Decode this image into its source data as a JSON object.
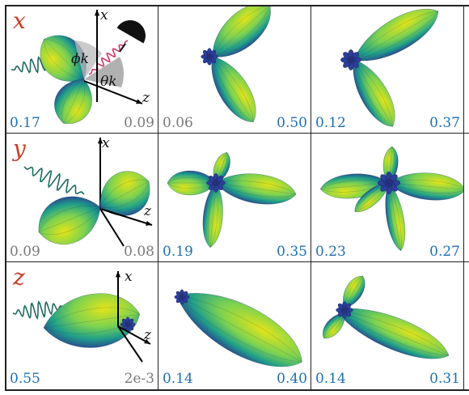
{
  "rows": [
    {
      "axis": "x",
      "cells": [
        {
          "left_value": "0.17",
          "left_color": "#1f6fb5",
          "right_value": "0.09",
          "right_color": "#7a7a7a",
          "kind": "schematic-x"
        },
        {
          "left_value": "0.06",
          "left_color": "#7a7a7a",
          "right_value": "0.50",
          "right_color": "#1f6fb5",
          "kind": "pattern"
        },
        {
          "left_value": "0.12",
          "left_color": "#1f6fb5",
          "right_value": "0.37",
          "right_color": "#1f6fb5",
          "kind": "pattern"
        }
      ]
    },
    {
      "axis": "y",
      "cells": [
        {
          "left_value": "0.09",
          "left_color": "#7a7a7a",
          "right_value": "0.08",
          "right_color": "#7a7a7a",
          "kind": "schematic-y"
        },
        {
          "left_value": "0.19",
          "left_color": "#1f6fb5",
          "right_value": "0.35",
          "right_color": "#1f6fb5",
          "kind": "pattern"
        },
        {
          "left_value": "0.23",
          "left_color": "#1f6fb5",
          "right_value": "0.27",
          "right_color": "#1f6fb5",
          "kind": "pattern"
        }
      ]
    },
    {
      "axis": "z",
      "cells": [
        {
          "left_value": "0.55",
          "left_color": "#1f6fb5",
          "right_value": "2e-3",
          "right_color": "#7a7a7a",
          "kind": "schematic-z"
        },
        {
          "left_value": "0.14",
          "left_color": "#1f6fb5",
          "right_value": "0.40",
          "right_color": "#1f6fb5",
          "kind": "pattern"
        },
        {
          "left_value": "0.14",
          "left_color": "#1f6fb5",
          "right_value": "0.31",
          "right_color": "#1f6fb5",
          "kind": "pattern"
        }
      ]
    }
  ],
  "schematic_labels": {
    "axis_x": "x",
    "axis_z": "z",
    "phi": "ϕk",
    "theta": "θk"
  },
  "colors": {
    "lobe_dark": "#2a3f8f",
    "lobe_mid": "#1f9e89",
    "lobe_light": "#e3e418",
    "row_label": "#c9402a",
    "value_blue": "#1f6fb5",
    "value_gray": "#7a7a7a",
    "wave": "#1d6b62"
  }
}
